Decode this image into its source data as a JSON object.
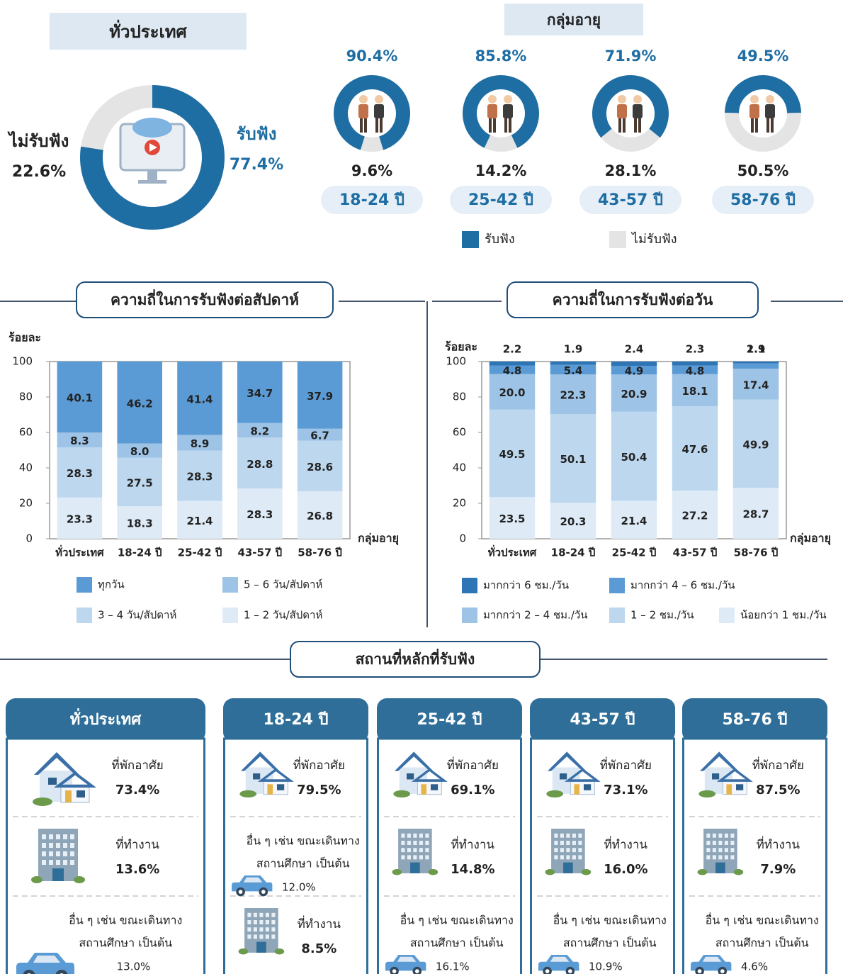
{
  "chart_data": [
    {
      "type": "pie",
      "title": "ทั่วประเทศ",
      "categories": [
        "รับฟัง",
        "ไม่รับฟัง"
      ],
      "values": [
        77.4,
        22.6
      ],
      "value_labels": [
        "77.4%",
        "22.6%"
      ],
      "colors": [
        "#1f6ea3",
        "#e4e4e4"
      ]
    },
    {
      "type": "donut-group",
      "title": "กลุ่มอายุ",
      "categories": [
        "18-24 ปี",
        "25-42 ปี",
        "43-57 ปี",
        "58-76 ปี"
      ],
      "series": [
        {
          "name": "รับฟัง",
          "color": "#1f6ea3",
          "values": [
            90.4,
            85.8,
            71.9,
            49.5
          ],
          "value_labels": [
            "90.4%",
            "85.8%",
            "71.9%",
            "49.5%"
          ]
        },
        {
          "name": "ไม่รับฟัง",
          "color": "#e4e4e4",
          "values": [
            9.6,
            14.2,
            28.1,
            50.5
          ],
          "value_labels": [
            "9.6%",
            "14.2%",
            "28.1%",
            "50.5%"
          ]
        }
      ]
    },
    {
      "type": "stacked-bar",
      "title": "ความถี่ในการรับฟังต่อสัปดาห์",
      "y_label": "ร้อยละ",
      "x_label": "กลุ่มอายุ",
      "categories": [
        "ทั่วประเทศ",
        "18-24 ปี",
        "25-42 ปี",
        "43-57 ปี",
        "58-76 ปี"
      ],
      "ylim": [
        0,
        100
      ],
      "yticks": [
        0,
        20,
        40,
        60,
        80,
        100
      ],
      "series": [
        {
          "name": "ทุกวัน",
          "color": "#5b9bd5",
          "values": [
            40.1,
            46.2,
            41.4,
            34.7,
            37.9
          ],
          "value_labels": [
            "40.1",
            "46.2",
            "41.4",
            "34.7",
            "37.9"
          ]
        },
        {
          "name": "5 – 6 วัน/สัปดาห์",
          "color": "#9dc3e6",
          "values": [
            8.3,
            8.0,
            8.9,
            8.2,
            6.7
          ],
          "value_labels": [
            "8.3",
            "8.0",
            "8.9",
            "8.2",
            "6.7"
          ]
        },
        {
          "name": "3 – 4 วัน/สัปดาห์",
          "color": "#bdd7ee",
          "values": [
            28.3,
            27.5,
            28.3,
            28.8,
            28.6
          ],
          "value_labels": [
            "28.3",
            "27.5",
            "28.3",
            "28.8",
            "28.6"
          ]
        },
        {
          "name": "1 – 2 วัน/สัปดาห์",
          "color": "#deebf7",
          "values": [
            23.3,
            18.3,
            21.4,
            28.3,
            26.8
          ],
          "value_labels": [
            "23.3",
            "18.3",
            "21.4",
            "28.3",
            "26.8"
          ]
        }
      ]
    },
    {
      "type": "stacked-bar",
      "title": "ความถี่ในการรับฟังต่อวัน",
      "y_label": "ร้อยละ",
      "x_label": "กลุ่มอายุ",
      "categories": [
        "ทั่วประเทศ",
        "18-24 ปี",
        "25-42 ปี",
        "43-57 ปี",
        "58-76 ปี"
      ],
      "ylim": [
        0,
        100
      ],
      "yticks": [
        0,
        20,
        40,
        60,
        80,
        100
      ],
      "series": [
        {
          "name": "มากกว่า 6 ชม./วัน",
          "color": "#2e75b6",
          "values": [
            2.2,
            1.9,
            2.4,
            2.3,
            1.1
          ],
          "value_labels": [
            "2.2",
            "1.9",
            "2.4",
            "2.3",
            "1.1"
          ]
        },
        {
          "name": "มากกว่า 4 – 6 ชม./วัน",
          "color": "#5b9bd5",
          "values": [
            4.8,
            5.4,
            4.9,
            4.8,
            2.9
          ],
          "value_labels": [
            "4.8",
            "5.4",
            "4.9",
            "4.8",
            "2.9"
          ]
        },
        {
          "name": "มากกว่า 2 – 4 ชม./วัน",
          "color": "#9dc3e6",
          "values": [
            20.0,
            22.3,
            20.9,
            18.1,
            17.4
          ],
          "value_labels": [
            "20.0",
            "22.3",
            "20.9",
            "18.1",
            "17.4"
          ]
        },
        {
          "name": "1 – 2 ชม./วัน",
          "color": "#bdd7ee",
          "values": [
            49.5,
            50.1,
            50.4,
            47.6,
            49.9
          ],
          "value_labels": [
            "49.5",
            "50.1",
            "50.4",
            "47.6",
            "49.9"
          ]
        },
        {
          "name": "น้อยกว่า 1 ชม./วัน",
          "color": "#deebf7",
          "values": [
            23.5,
            20.3,
            21.4,
            27.2,
            28.7
          ],
          "value_labels": [
            "23.5",
            "20.3",
            "21.4",
            "27.2",
            "28.7"
          ]
        }
      ]
    }
  ],
  "places": {
    "title": "สถานที่หลักที่รับฟัง",
    "cards": [
      {
        "title": "ทั่วประเทศ",
        "items": [
          {
            "label": "ที่พักอาศัย",
            "value": "73.4%"
          },
          {
            "label": "ที่ทำงาน",
            "value": "13.6%"
          },
          {
            "label": [
              "อื่น ๆ เช่น ขณะเดินทาง",
              "สถานศึกษา เป็นต้น"
            ],
            "value": "13.0%"
          }
        ]
      },
      {
        "title": "18-24 ปี",
        "items": [
          {
            "label": "ที่พักอาศัย",
            "value": "79.5%"
          },
          {
            "label": [
              "อื่น ๆ เช่น ขณะเดินทาง",
              "สถานศึกษา เป็นต้น"
            ],
            "value": "12.0%"
          },
          {
            "label": "ที่ทำงาน",
            "value": "8.5%"
          }
        ]
      },
      {
        "title": "25-42 ปี",
        "items": [
          {
            "label": "ที่พักอาศัย",
            "value": "69.1%"
          },
          {
            "label": "ที่ทำงาน",
            "value": "14.8%"
          },
          {
            "label": [
              "อื่น ๆ เช่น ขณะเดินทาง",
              "สถานศึกษา เป็นต้น"
            ],
            "value": "16.1%"
          }
        ]
      },
      {
        "title": "43-57 ปี",
        "items": [
          {
            "label": "ที่พักอาศัย",
            "value": "73.1%"
          },
          {
            "label": "ที่ทำงาน",
            "value": "16.0%"
          },
          {
            "label": [
              "อื่น ๆ เช่น ขณะเดินทาง",
              "สถานศึกษา เป็นต้น"
            ],
            "value": "10.9%"
          }
        ]
      },
      {
        "title": "58-76 ปี",
        "items": [
          {
            "label": "ที่พักอาศัย",
            "value": "87.5%"
          },
          {
            "label": "ที่ทำงาน",
            "value": "7.9%"
          },
          {
            "label": [
              "อื่น ๆ เช่น ขณะเดินทาง",
              "สถานศึกษา เป็นต้น"
            ],
            "value": "4.6%"
          }
        ]
      }
    ]
  }
}
